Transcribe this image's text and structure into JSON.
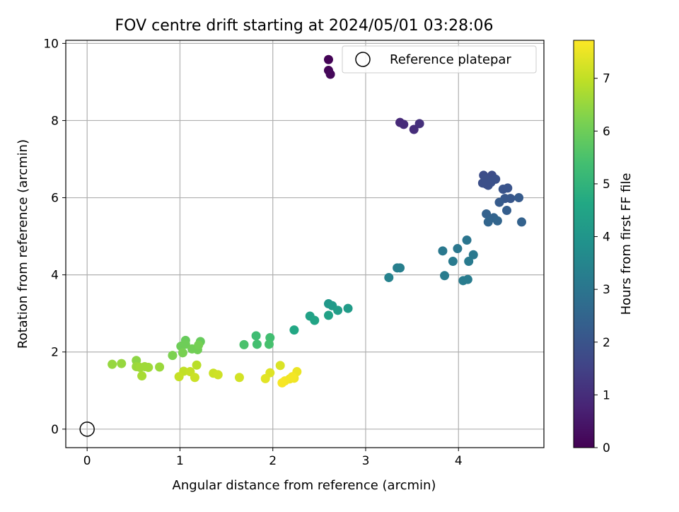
{
  "chart_data": {
    "type": "scatter",
    "title": "FOV centre drift starting at 2024/05/01 03:28:06",
    "xlabel": "Angular distance from reference (arcmin)",
    "ylabel": "Rotation from reference (arcmin)",
    "xlim": [
      -0.23,
      4.92
    ],
    "ylim": [
      -0.48,
      10.08
    ],
    "xticks": [
      0,
      1,
      2,
      3,
      4
    ],
    "yticks": [
      0,
      2,
      4,
      6,
      8,
      10
    ],
    "grid": true,
    "legend": {
      "placement": "top-right",
      "entries": [
        "Reference platepar"
      ]
    },
    "colorbar": {
      "label": "Hours from first FF file",
      "range": [
        0,
        7.72
      ],
      "ticks": [
        0,
        1,
        2,
        3,
        4,
        5,
        6,
        7
      ],
      "colormap": "viridis"
    },
    "reference_point": {
      "name": "Reference platepar",
      "x": 0,
      "y": 0
    },
    "series": [
      {
        "points": [
          [
            2.6,
            9.58,
            0.05
          ],
          [
            2.6,
            9.3,
            0.1
          ],
          [
            2.62,
            9.2,
            0.15
          ],
          [
            3.37,
            7.95,
            0.9
          ],
          [
            3.41,
            7.9,
            0.95
          ],
          [
            3.52,
            7.77,
            1.0
          ],
          [
            3.58,
            7.92,
            1.05
          ],
          [
            4.27,
            6.58,
            1.8
          ],
          [
            4.36,
            6.58,
            1.8
          ],
          [
            4.26,
            6.38,
            1.85
          ],
          [
            4.29,
            6.48,
            1.85
          ],
          [
            4.32,
            6.32,
            1.9
          ],
          [
            4.35,
            6.4,
            1.9
          ],
          [
            4.4,
            6.48,
            1.9
          ],
          [
            4.3,
            6.35,
            1.85
          ],
          [
            4.48,
            6.22,
            2.0
          ],
          [
            4.53,
            6.25,
            2.0
          ],
          [
            4.5,
            5.98,
            2.1
          ],
          [
            4.56,
            5.98,
            2.1
          ],
          [
            4.65,
            6.0,
            2.2
          ],
          [
            4.44,
            5.88,
            2.2
          ],
          [
            4.52,
            5.67,
            2.3
          ],
          [
            4.3,
            5.58,
            2.4
          ],
          [
            4.38,
            5.48,
            2.45
          ],
          [
            4.42,
            5.4,
            2.5
          ],
          [
            4.32,
            5.37,
            2.5
          ],
          [
            4.68,
            5.37,
            2.4
          ],
          [
            4.09,
            4.9,
            3.0
          ],
          [
            3.99,
            4.68,
            3.05
          ],
          [
            3.83,
            4.62,
            3.1
          ],
          [
            4.16,
            4.52,
            3.1
          ],
          [
            3.94,
            4.35,
            3.15
          ],
          [
            4.11,
            4.35,
            3.15
          ],
          [
            3.34,
            4.18,
            3.3
          ],
          [
            3.37,
            4.18,
            3.3
          ],
          [
            3.25,
            3.93,
            3.4
          ],
          [
            3.85,
            3.98,
            3.2
          ],
          [
            4.05,
            3.85,
            3.2
          ],
          [
            4.1,
            3.88,
            3.2
          ],
          [
            2.6,
            3.25,
            4.1
          ],
          [
            2.64,
            3.2,
            4.15
          ],
          [
            2.7,
            3.08,
            4.25
          ],
          [
            2.81,
            3.13,
            4.2
          ],
          [
            2.4,
            2.93,
            4.4
          ],
          [
            2.6,
            2.95,
            4.4
          ],
          [
            2.45,
            2.82,
            4.5
          ],
          [
            2.23,
            2.57,
            4.6
          ],
          [
            1.82,
            2.42,
            5.3
          ],
          [
            1.97,
            2.37,
            5.35
          ],
          [
            1.83,
            2.2,
            5.4
          ],
          [
            1.69,
            2.19,
            5.5
          ],
          [
            1.96,
            2.2,
            5.45
          ],
          [
            1.06,
            2.3,
            5.9
          ],
          [
            1.22,
            2.27,
            5.9
          ],
          [
            1.01,
            2.15,
            6.0
          ],
          [
            1.06,
            2.2,
            6.0
          ],
          [
            1.13,
            2.08,
            6.05
          ],
          [
            1.19,
            2.06,
            6.05
          ],
          [
            1.2,
            2.18,
            6.1
          ],
          [
            1.03,
            1.98,
            6.15
          ],
          [
            0.92,
            1.91,
            6.2
          ],
          [
            0.53,
            1.78,
            6.4
          ],
          [
            0.27,
            1.68,
            6.5
          ],
          [
            0.37,
            1.7,
            6.5
          ],
          [
            0.53,
            1.62,
            6.55
          ],
          [
            0.57,
            1.6,
            6.6
          ],
          [
            0.66,
            1.6,
            6.6
          ],
          [
            0.62,
            1.62,
            6.6
          ],
          [
            0.78,
            1.61,
            6.55
          ],
          [
            0.59,
            1.38,
            6.7
          ],
          [
            1.18,
            1.66,
            6.9
          ],
          [
            1.04,
            1.5,
            7.0
          ],
          [
            1.11,
            1.49,
            7.05
          ],
          [
            0.99,
            1.36,
            7.05
          ],
          [
            1.16,
            1.34,
            7.1
          ],
          [
            1.36,
            1.45,
            7.1
          ],
          [
            1.41,
            1.41,
            7.15
          ],
          [
            1.64,
            1.34,
            7.2
          ],
          [
            2.08,
            1.65,
            7.3
          ],
          [
            1.97,
            1.46,
            7.35
          ],
          [
            1.92,
            1.31,
            7.4
          ],
          [
            2.26,
            1.49,
            7.5
          ],
          [
            2.18,
            1.3,
            7.55
          ],
          [
            2.23,
            1.32,
            7.55
          ],
          [
            2.13,
            1.25,
            7.6
          ],
          [
            2.1,
            1.2,
            7.65
          ],
          [
            2.21,
            1.36,
            7.6
          ]
        ]
      }
    ]
  }
}
